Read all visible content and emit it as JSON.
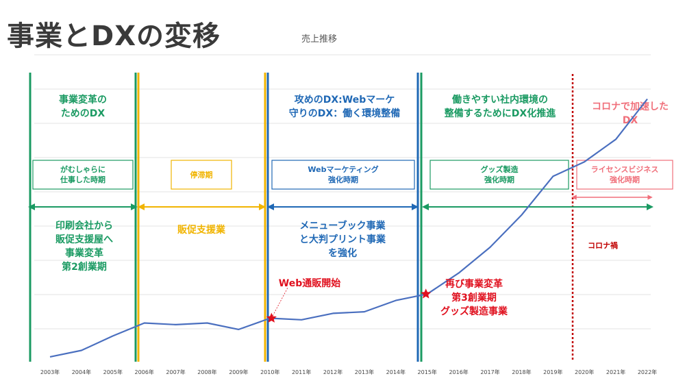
{
  "title": "事業とDXの変移",
  "subtitle": "売上推移",
  "colors": {
    "line": "#4a6fbf",
    "green": "#1a9a62",
    "yellow": "#f1b400",
    "blue": "#1f68b5",
    "pink": "#f06f7a",
    "red": "#e0101e",
    "darkred": "#c00000"
  },
  "chart_data": {
    "type": "line",
    "title": "売上推移",
    "xlabel": "",
    "ylabel": "",
    "categories": [
      "2003年",
      "2004年",
      "2005年",
      "2006年",
      "2007年",
      "2008年",
      "2009年",
      "2010年",
      "2011年",
      "2012年",
      "2013年",
      "2014年",
      "2015年",
      "2016年",
      "2017年",
      "2018年",
      "2019年",
      "2020年",
      "2021年",
      "2022年"
    ],
    "values": [
      3,
      7,
      16,
      24,
      23,
      24,
      20,
      27,
      26,
      30,
      31,
      38,
      42,
      55,
      71,
      91,
      115,
      124,
      138,
      163
    ],
    "ylim": [
      0,
      170
    ],
    "grid": true,
    "legend": "none",
    "markers": [
      {
        "category": "2010年",
        "label": "Web通販開始"
      },
      {
        "category": "2015年",
        "label": ""
      }
    ]
  },
  "phases": [
    {
      "title": [
        "事業変革の",
        "ためのDX"
      ],
      "box": [
        "がむしゃらに",
        "仕事した時期"
      ],
      "desc": [
        "印刷会社から",
        "販促支援屋へ",
        "事業変革",
        "第2創業期"
      ]
    },
    {
      "title": [],
      "box": [
        "停滞期"
      ],
      "desc": [
        "販促支援業"
      ]
    },
    {
      "title": [
        "攻めのDX:Webマーケ",
        "守りのDX：働く環境整備"
      ],
      "box": [
        "Webマーケティング",
        "強化時期"
      ],
      "desc": [
        "メニューブック事業",
        "と大判プリント事業",
        "を強化"
      ]
    },
    {
      "title": [
        "働きやすい社内環境の",
        "整備するためにDX化推進"
      ],
      "box": [
        "グッズ製造",
        "強化時期"
      ],
      "desc": []
    },
    {
      "title": [
        "コロナで加速した",
        "DX"
      ],
      "box": [
        "ライセンスビジネス",
        "強化時期"
      ],
      "desc": [
        "コロナ禍"
      ]
    }
  ],
  "annotations": {
    "web_start": "Web通販開始",
    "restart": [
      "再び事業変革",
      "第3創業期",
      "グッズ製造事業"
    ]
  }
}
